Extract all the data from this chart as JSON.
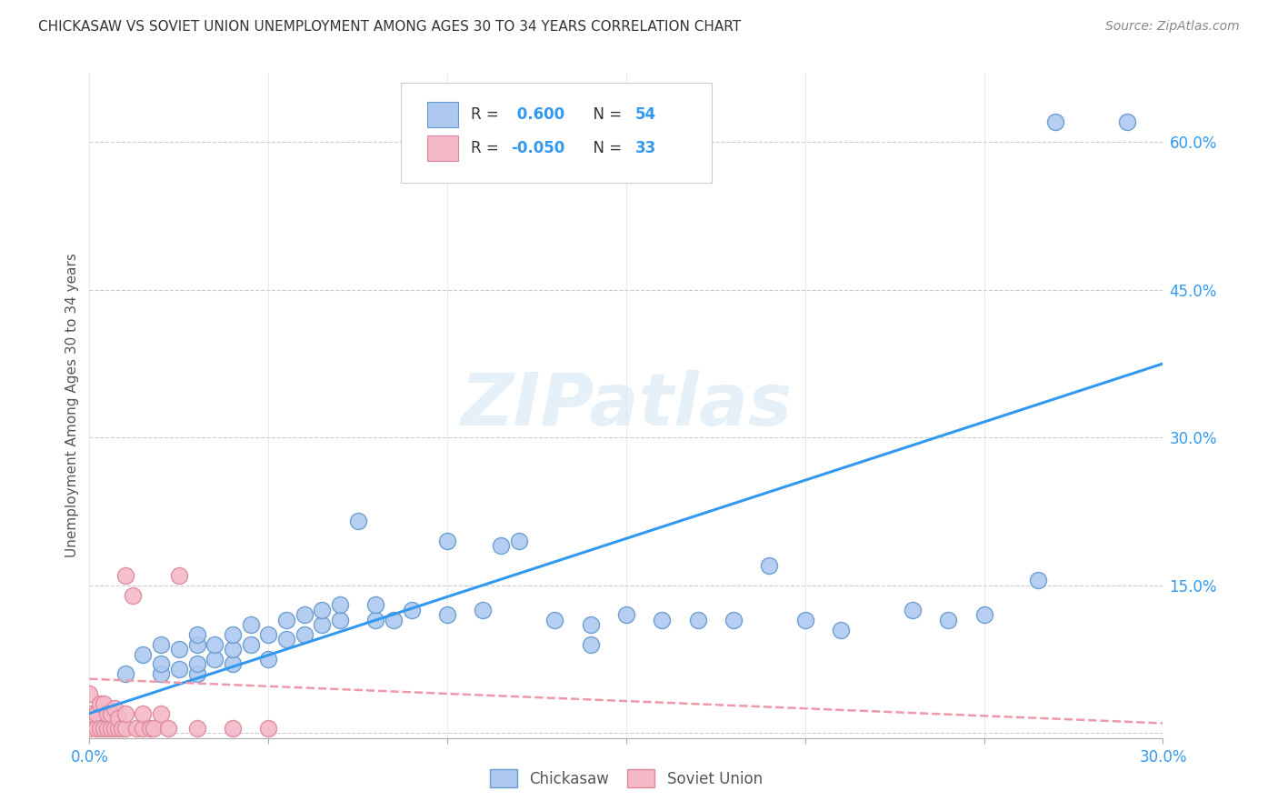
{
  "title": "CHICKASAW VS SOVIET UNION UNEMPLOYMENT AMONG AGES 30 TO 34 YEARS CORRELATION CHART",
  "source": "Source: ZipAtlas.com",
  "ylabel": "Unemployment Among Ages 30 to 34 years",
  "xlim": [
    0.0,
    0.3
  ],
  "ylim": [
    -0.005,
    0.67
  ],
  "xticks": [
    0.0,
    0.05,
    0.1,
    0.15,
    0.2,
    0.25,
    0.3
  ],
  "yticks_right": [
    0.0,
    0.15,
    0.3,
    0.45,
    0.6
  ],
  "ytick_labels_right": [
    "",
    "15.0%",
    "30.0%",
    "45.0%",
    "60.0%"
  ],
  "chickasaw_color": "#adc9f0",
  "soviet_color": "#f4b8c8",
  "chickasaw_edge": "#6699cc",
  "soviet_edge": "#dd8899",
  "line_blue": "#3399ee",
  "line_pink": "#ee99aa",
  "watermark": "ZIPatlas",
  "chickasaw_x": [
    0.01,
    0.015,
    0.02,
    0.02,
    0.02,
    0.025,
    0.025,
    0.03,
    0.03,
    0.03,
    0.03,
    0.035,
    0.035,
    0.04,
    0.04,
    0.04,
    0.045,
    0.045,
    0.05,
    0.05,
    0.055,
    0.055,
    0.06,
    0.06,
    0.065,
    0.065,
    0.07,
    0.07,
    0.075,
    0.08,
    0.08,
    0.085,
    0.09,
    0.1,
    0.1,
    0.11,
    0.115,
    0.12,
    0.13,
    0.14,
    0.14,
    0.15,
    0.16,
    0.17,
    0.18,
    0.19,
    0.2,
    0.21,
    0.23,
    0.24,
    0.25,
    0.265,
    0.27,
    0.29
  ],
  "chickasaw_y": [
    0.06,
    0.08,
    0.06,
    0.07,
    0.09,
    0.065,
    0.085,
    0.06,
    0.07,
    0.09,
    0.1,
    0.075,
    0.09,
    0.07,
    0.085,
    0.1,
    0.09,
    0.11,
    0.075,
    0.1,
    0.095,
    0.115,
    0.1,
    0.12,
    0.11,
    0.125,
    0.115,
    0.13,
    0.215,
    0.115,
    0.13,
    0.115,
    0.125,
    0.12,
    0.195,
    0.125,
    0.19,
    0.195,
    0.115,
    0.11,
    0.09,
    0.12,
    0.115,
    0.115,
    0.115,
    0.17,
    0.115,
    0.105,
    0.125,
    0.115,
    0.12,
    0.155,
    0.62,
    0.62
  ],
  "soviet_x": [
    0.0,
    0.0,
    0.0,
    0.002,
    0.002,
    0.003,
    0.003,
    0.004,
    0.004,
    0.005,
    0.005,
    0.006,
    0.006,
    0.007,
    0.007,
    0.008,
    0.008,
    0.009,
    0.01,
    0.01,
    0.01,
    0.012,
    0.013,
    0.015,
    0.015,
    0.017,
    0.018,
    0.02,
    0.022,
    0.025,
    0.03,
    0.04,
    0.05
  ],
  "soviet_y": [
    0.005,
    0.02,
    0.04,
    0.005,
    0.02,
    0.005,
    0.03,
    0.005,
    0.03,
    0.005,
    0.02,
    0.005,
    0.02,
    0.005,
    0.025,
    0.005,
    0.015,
    0.005,
    0.005,
    0.02,
    0.16,
    0.14,
    0.005,
    0.005,
    0.02,
    0.005,
    0.005,
    0.02,
    0.005,
    0.16,
    0.005,
    0.005,
    0.005
  ],
  "blue_line_x": [
    0.0,
    0.3
  ],
  "blue_line_y": [
    0.02,
    0.375
  ],
  "pink_line_x": [
    0.0,
    0.3
  ],
  "pink_line_y": [
    0.055,
    0.01
  ]
}
